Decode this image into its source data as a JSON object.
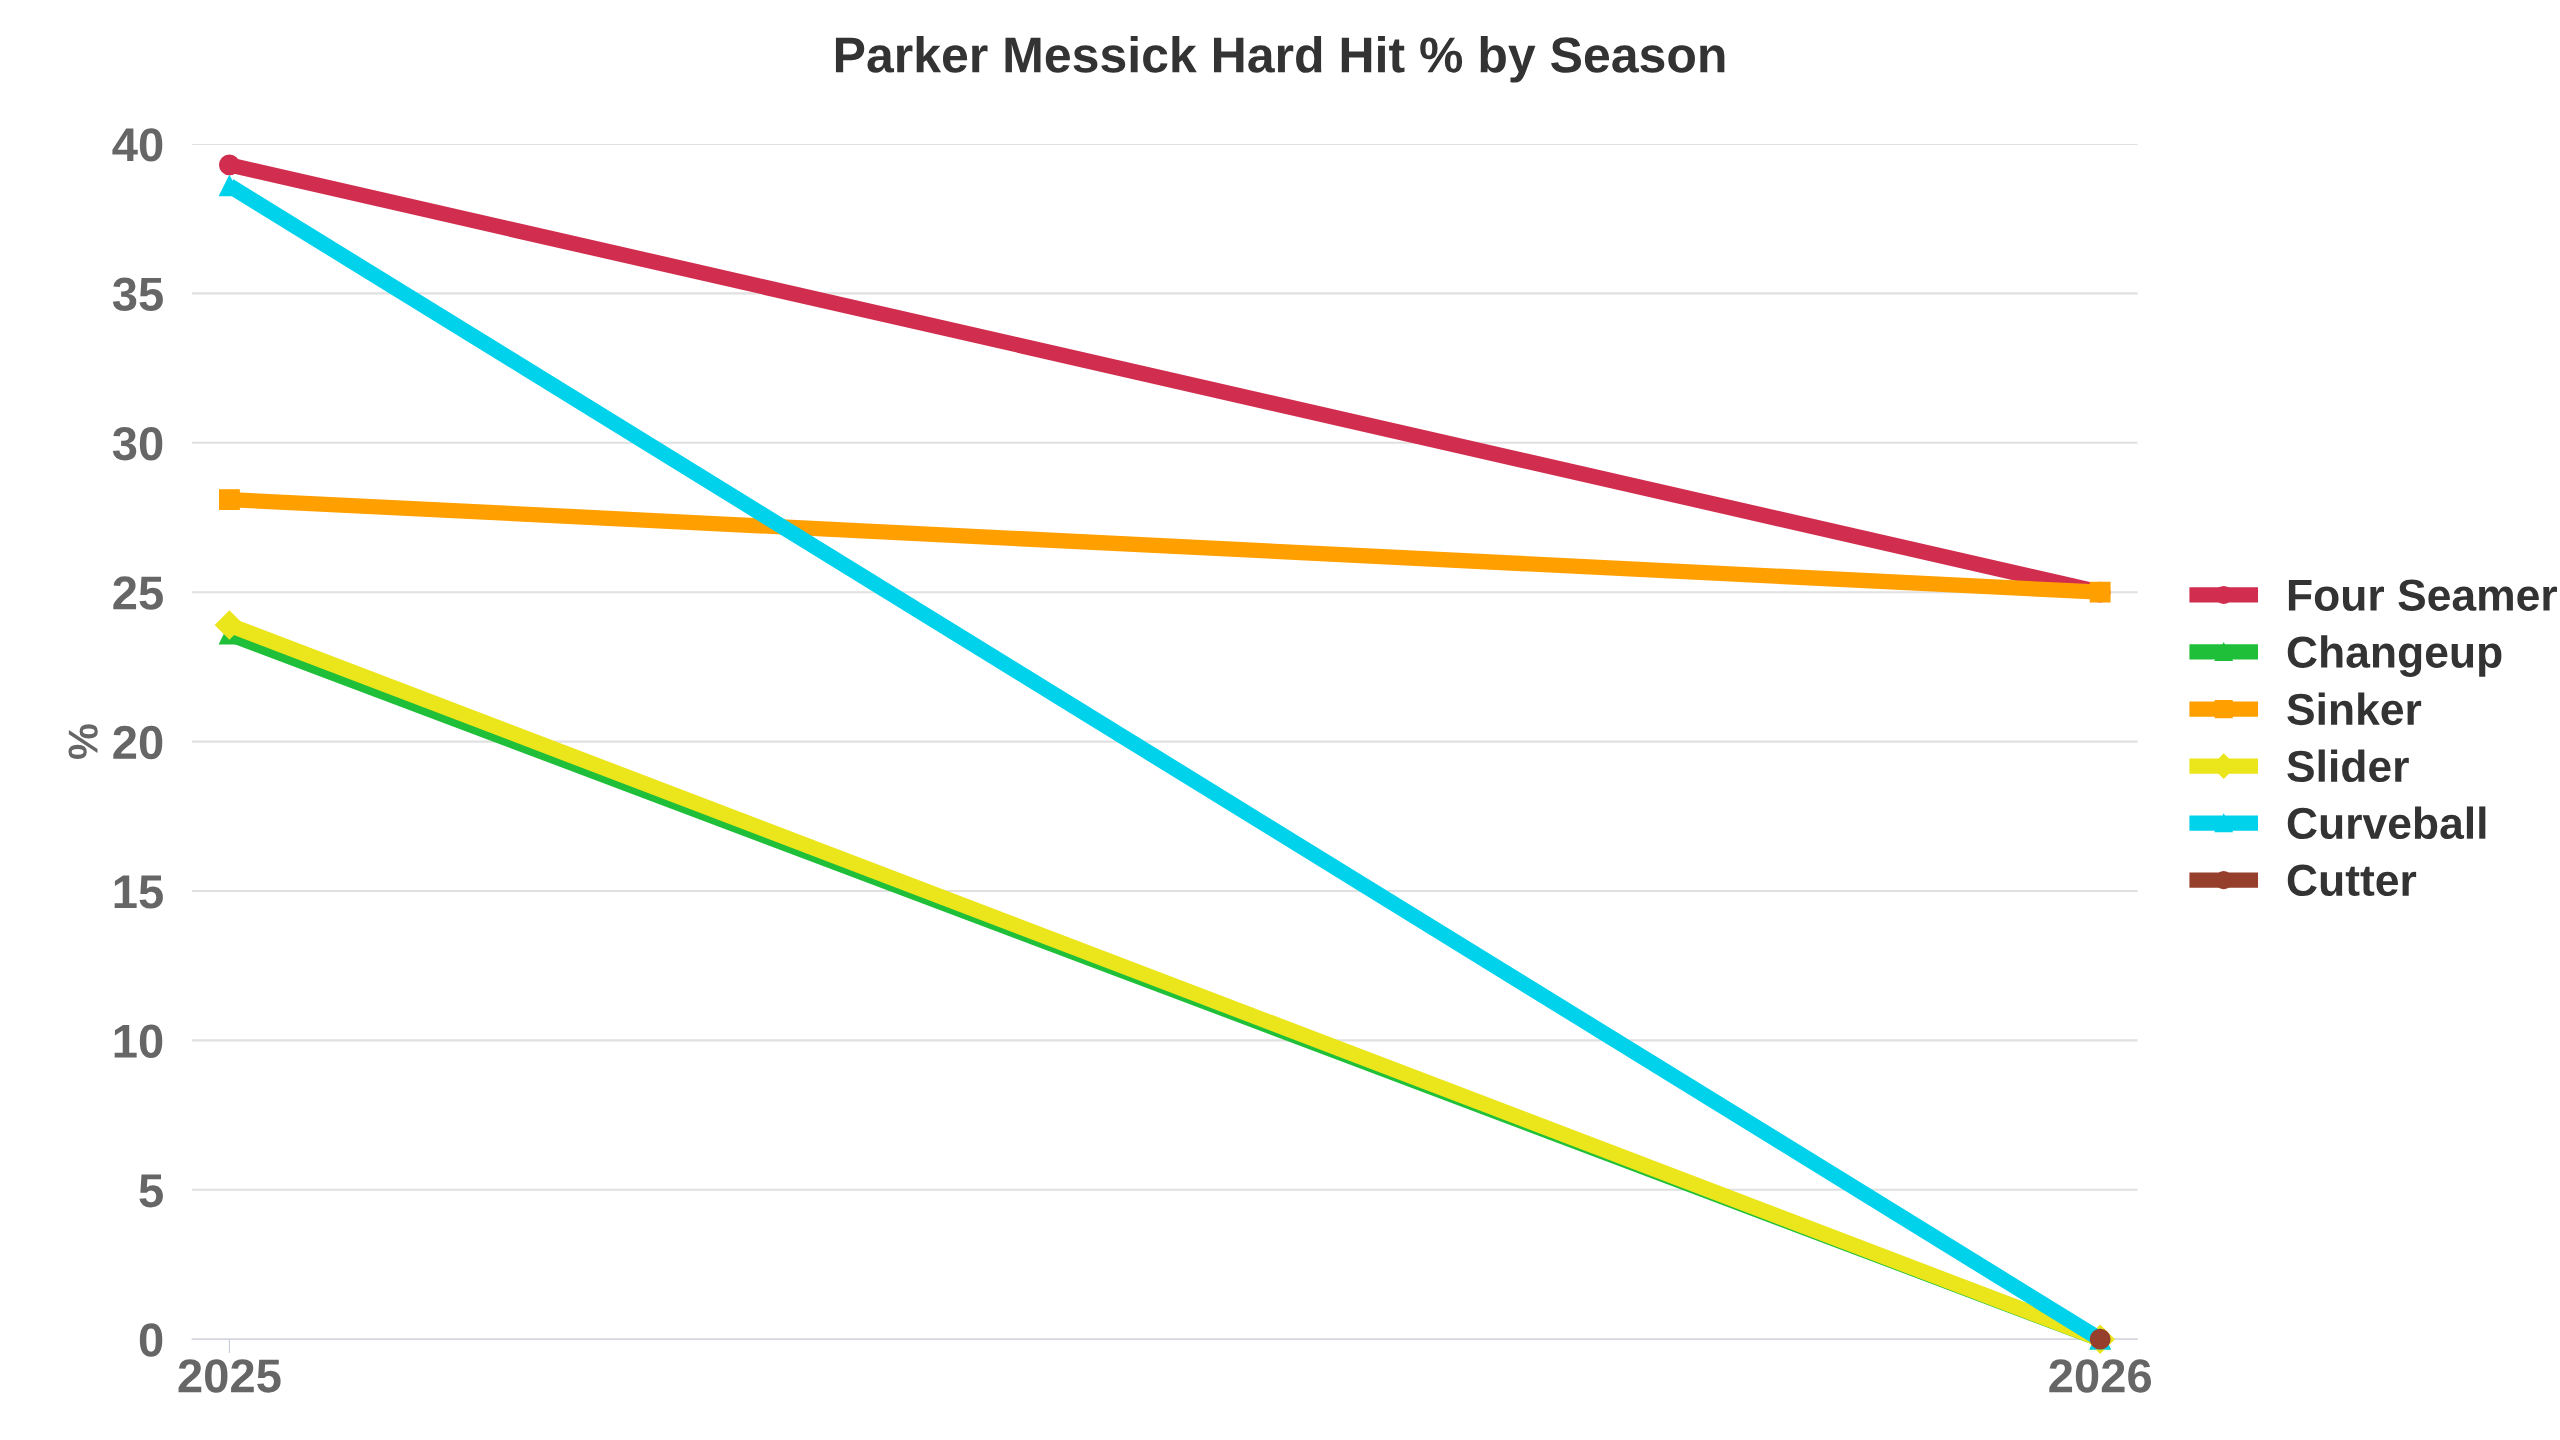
{
  "chart_data": {
    "type": "line",
    "title": "Parker Messick Hard Hit % by Season",
    "ylabel": "%",
    "x": [
      2025,
      2026
    ],
    "xlim": [
      2024.98,
      2026.02
    ],
    "xticks": [
      2025,
      2026
    ],
    "ylim": [
      0,
      40
    ],
    "yticks": [
      0,
      5,
      10,
      15,
      20,
      25,
      30,
      35,
      40
    ],
    "grid": "y",
    "legend": "right",
    "line_style": "solid",
    "series": [
      {
        "name": "Four Seamer",
        "color": "#d12d4e",
        "values": [
          39.3,
          25
        ],
        "marker": "circle"
      },
      {
        "name": "Changeup",
        "color": "#1fbf3a",
        "values": [
          23.6,
          0
        ],
        "marker": "triangle"
      },
      {
        "name": "Sinker",
        "color": "#ff9f00",
        "values": [
          28.1,
          25
        ],
        "marker": "square"
      },
      {
        "name": "Slider",
        "color": "#ebe51b",
        "values": [
          23.9,
          0
        ],
        "marker": "diamond"
      },
      {
        "name": "Curveball",
        "color": "#00d2eb",
        "values": [
          38.6,
          0
        ],
        "marker": "triangle"
      },
      {
        "name": "Cutter",
        "color": "#963f2c",
        "values": [
          null,
          0
        ],
        "marker": "circle"
      }
    ]
  }
}
